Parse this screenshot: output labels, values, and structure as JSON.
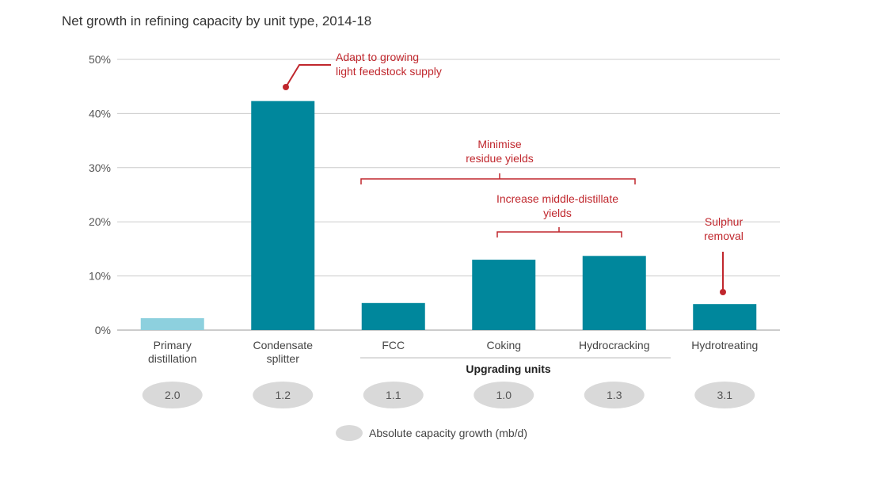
{
  "chart_data": {
    "type": "bar",
    "title": "Net growth in refining capacity by unit type, 2014-18",
    "categories": [
      [
        "Primary",
        "distillation"
      ],
      [
        "Condensate",
        "splitter"
      ],
      [
        "FCC"
      ],
      [
        "Coking"
      ],
      [
        "Hydrocracking"
      ],
      [
        "Hydrotreating"
      ]
    ],
    "values": [
      2.2,
      42.3,
      5.0,
      13.0,
      13.7,
      4.8
    ],
    "bar_colors": [
      "#8dd0de",
      "#00879c",
      "#00879c",
      "#00879c",
      "#00879c",
      "#00879c"
    ],
    "ylim": [
      0,
      50
    ],
    "yticks": [
      0,
      10,
      20,
      30,
      40,
      50
    ],
    "ytick_labels": [
      "0%",
      "10%",
      "20%",
      "30%",
      "40%",
      "50%"
    ],
    "xlabel": "",
    "ylabel": "",
    "grid": true,
    "group_label": "Upgrading units",
    "absolute_growth": [
      "2.0",
      "1.2",
      "1.1",
      "1.0",
      "1.3",
      "3.1"
    ],
    "legend_label": "Absolute capacity growth (mb/d)",
    "annotations": {
      "condensate": [
        "Adapt to growing",
        "light feedstock supply"
      ],
      "residue": [
        "Minimise",
        "residue yields"
      ],
      "middle_distillate": [
        "Increase middle-distillate",
        "yields"
      ],
      "sulphur": [
        "Sulphur",
        "removal"
      ]
    },
    "colors": {
      "accent": "#c0272d",
      "grid": "#cccccc",
      "bubble": "#d9d9d9"
    }
  }
}
